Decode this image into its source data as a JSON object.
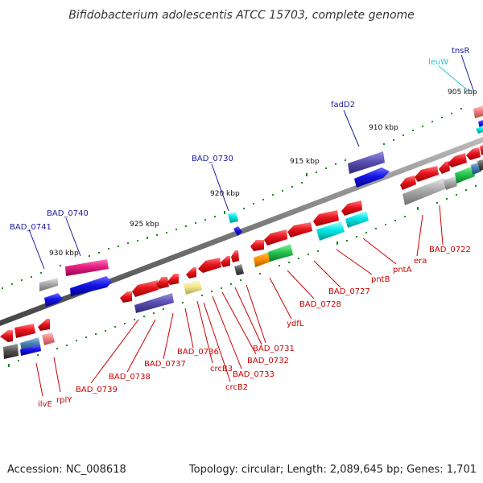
{
  "title": "Bifidobacterium adolescentis ATCC 15703, complete genome",
  "footer": {
    "accession": "Accession: NC_008618",
    "summary": "Topology: circular; Length: 2,089,645 bp; Genes: 1,701"
  },
  "kbp_ticks": [
    "930 kbp",
    "925 kbp",
    "920 kbp",
    "915 kbp",
    "910 kbp",
    "905 kbp"
  ],
  "labels_upper": [
    "BAD_0741",
    "BAD_0740",
    "BAD_0730",
    "fadD2",
    "leuW",
    "tnsR"
  ],
  "labels_lower": [
    "ilvE",
    "rplY",
    "BAD_0739",
    "BAD_0738",
    "BAD_0737",
    "BAD_0736",
    "crcB3",
    "crcB2",
    "BAD_0733",
    "BAD_0732",
    "BAD_0731",
    "ydfL",
    "BAD_0728",
    "BAD_0727",
    "pntB",
    "pntA",
    "era",
    "BAD_0722"
  ],
  "colors": {
    "red": "#e8141e",
    "blue": "#1414e6",
    "purple": "#5a50b4",
    "magenta": "#e61e82",
    "cyan": "#00e6e6",
    "green": "#28c850",
    "orange": "#ff9600",
    "yellow": "#f0e68c",
    "gray": "#aaaaaa",
    "darkgray": "#555555",
    "label_red": "#cc0000",
    "label_blue": "#1a1aa0",
    "label_cyan": "#22c4e0",
    "tick_green": "#1a8c1a"
  }
}
